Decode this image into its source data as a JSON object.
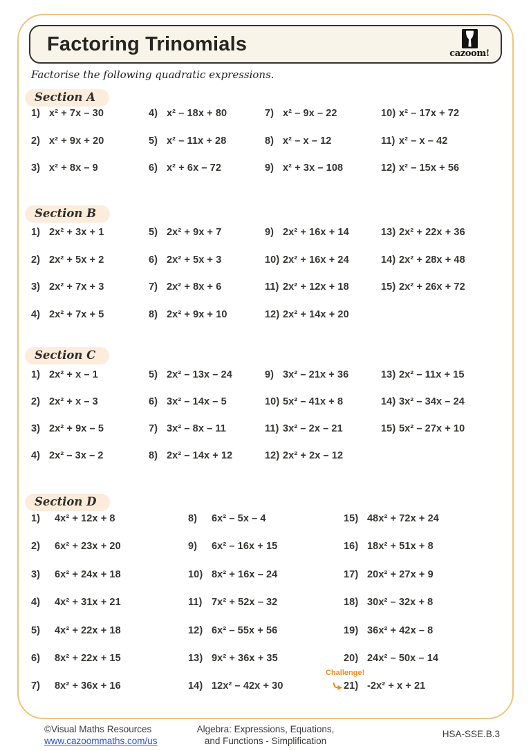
{
  "header": {
    "title": "Factoring Trinomials",
    "logo_text": "cazoom!"
  },
  "instruction": "Factorise the following quadratic expressions.",
  "challenge_label": "Challenge!",
  "accent_colors": {
    "frame_border": "#f0c377",
    "pill_bg": "#fcecdb",
    "challenge_orange": "#f28a1e",
    "link_blue": "#2b50cc"
  },
  "sections": [
    {
      "label": "Section A",
      "problems": [
        {
          "n": "1)",
          "e": "x² + 7x – 30"
        },
        {
          "n": "2)",
          "e": "x² + 9x + 20"
        },
        {
          "n": "3)",
          "e": "x² + 8x – 9"
        },
        {
          "n": "4)",
          "e": "x² – 18x + 80"
        },
        {
          "n": "5)",
          "e": "x² – 11x + 28"
        },
        {
          "n": "6)",
          "e": "x² + 6x – 72"
        },
        {
          "n": "7)",
          "e": "x² – 9x – 22"
        },
        {
          "n": "8)",
          "e": "x² – x – 12"
        },
        {
          "n": "9)",
          "e": "x² + 3x – 108"
        },
        {
          "n": "10)",
          "e": "x² – 17x + 72"
        },
        {
          "n": "11)",
          "e": "x² – x – 42"
        },
        {
          "n": "12)",
          "e": "x² – 15x + 56"
        }
      ]
    },
    {
      "label": "Section B",
      "problems": [
        {
          "n": "1)",
          "e": "2x² + 3x + 1"
        },
        {
          "n": "2)",
          "e": "2x² + 5x + 2"
        },
        {
          "n": "3)",
          "e": "2x² + 7x + 3"
        },
        {
          "n": "4)",
          "e": "2x² + 7x + 5"
        },
        {
          "n": "5)",
          "e": "2x² + 9x + 7"
        },
        {
          "n": "6)",
          "e": "2x² + 5x + 3"
        },
        {
          "n": "7)",
          "e": "2x² + 8x + 6"
        },
        {
          "n": "8)",
          "e": "2x² + 9x + 10"
        },
        {
          "n": "9)",
          "e": "2x² + 16x + 14"
        },
        {
          "n": "10)",
          "e": "2x² + 16x + 24"
        },
        {
          "n": "11)",
          "e": "2x² + 12x + 18"
        },
        {
          "n": "12)",
          "e": "2x² + 14x + 20"
        },
        {
          "n": "13)",
          "e": "2x² + 22x + 36"
        },
        {
          "n": "14)",
          "e": "2x² + 28x + 48"
        },
        {
          "n": "15)",
          "e": "2x² + 26x + 72"
        }
      ]
    },
    {
      "label": "Section C",
      "problems": [
        {
          "n": "1)",
          "e": "2x² + x – 1"
        },
        {
          "n": "2)",
          "e": "2x² + x – 3"
        },
        {
          "n": "3)",
          "e": "2x² + 9x – 5"
        },
        {
          "n": "4)",
          "e": "2x² – 3x – 2"
        },
        {
          "n": "5)",
          "e": "2x² – 13x – 24"
        },
        {
          "n": "6)",
          "e": "3x² – 14x – 5"
        },
        {
          "n": "7)",
          "e": "3x² – 8x – 11"
        },
        {
          "n": "8)",
          "e": "2x² – 14x + 12"
        },
        {
          "n": "9)",
          "e": "3x² – 21x + 36"
        },
        {
          "n": "10)",
          "e": "5x² – 41x + 8"
        },
        {
          "n": "11)",
          "e": "3x² – 2x – 21"
        },
        {
          "n": "12)",
          "e": "2x² + 2x – 12"
        },
        {
          "n": "13)",
          "e": "2x² – 11x + 15"
        },
        {
          "n": "14)",
          "e": "3x² – 34x – 24"
        },
        {
          "n": "15)",
          "e": "5x² – 27x + 10"
        }
      ]
    },
    {
      "label": "Section D",
      "problems": [
        {
          "n": "1)",
          "e": "4x² + 12x + 8"
        },
        {
          "n": "2)",
          "e": "6x² + 23x + 20"
        },
        {
          "n": "3)",
          "e": "6x² + 24x + 18"
        },
        {
          "n": "4)",
          "e": "4x² + 31x + 21"
        },
        {
          "n": "5)",
          "e": "4x² + 22x + 18"
        },
        {
          "n": "6)",
          "e": "8x² + 22x + 15"
        },
        {
          "n": "7)",
          "e": "8x² + 36x + 16"
        },
        {
          "n": "8)",
          "e": "6x² – 5x – 4"
        },
        {
          "n": "9)",
          "e": "6x² – 16x + 15"
        },
        {
          "n": "10)",
          "e": "8x² + 16x – 24"
        },
        {
          "n": "11)",
          "e": "7x² + 52x – 32"
        },
        {
          "n": "12)",
          "e": "6x² – 55x + 56"
        },
        {
          "n": "13)",
          "e": "9x² + 36x + 35"
        },
        {
          "n": "14)",
          "e": "12x² – 42x + 30"
        },
        {
          "n": "15)",
          "e": "48x² + 72x + 24"
        },
        {
          "n": "16)",
          "e": "18x² + 51x + 8"
        },
        {
          "n": "17)",
          "e": "20x² + 27x + 9"
        },
        {
          "n": "18)",
          "e": "30x² – 32x + 8"
        },
        {
          "n": "19)",
          "e": "36x² + 42x – 8"
        },
        {
          "n": "20)",
          "e": "24x² – 50x – 14"
        },
        {
          "n": "21)",
          "e": "-2x² + x + 21",
          "c": true
        }
      ]
    }
  ],
  "footer": {
    "copyright": "©Visual Maths Resources",
    "website": "www.cazoommaths.com/us",
    "topic_line1": "Algebra: Expressions, Equations,",
    "topic_line2": "and Functions - Simplification",
    "standard": "HSA-SSE.B.3"
  }
}
